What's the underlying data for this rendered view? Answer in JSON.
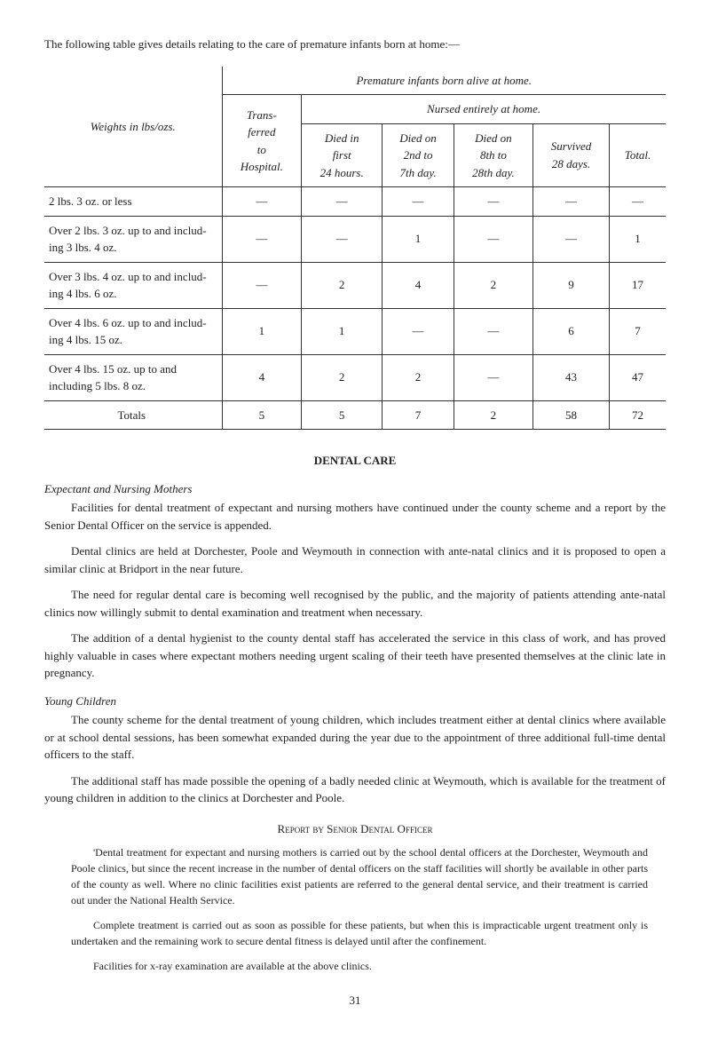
{
  "intro_text": "The following table gives details relating to the care of premature infants born at home:—",
  "table": {
    "col1_header": "Weights in lbs/ozs.",
    "spanning_header": "Premature infants born alive at home.",
    "trans_header": "Trans-\nferred\nto\nHospital.",
    "nursed_header": "Nursed entirely at home.",
    "sub_headers": {
      "died_first": "Died in\nfirst\n24 hours.",
      "died_2nd": "Died on\n2nd to\n7th day.",
      "died_8th": "Died on\n8th to\n28th day.",
      "survived": "Survived\n28 days.",
      "total": "Total."
    },
    "rows": [
      {
        "label": "2 lbs. 3 oz. or less",
        "cells": [
          "—",
          "—",
          "—",
          "—",
          "—",
          "—"
        ]
      },
      {
        "label": "Over 2 lbs. 3 oz. up to and includ-\ning 3 lbs. 4 oz.",
        "cells": [
          "—",
          "—",
          "1",
          "—",
          "—",
          "1"
        ]
      },
      {
        "label": "Over 3 lbs. 4 oz. up to and includ-\ning 4 lbs. 6 oz.",
        "cells": [
          "—",
          "2",
          "4",
          "2",
          "9",
          "17"
        ]
      },
      {
        "label": "Over 4 lbs. 6 oz. up to and includ-\ning 4 lbs. 15 oz.",
        "cells": [
          "1",
          "1",
          "—",
          "—",
          "6",
          "7"
        ]
      },
      {
        "label": "Over 4 lbs. 15 oz. up to and\nincluding 5 lbs. 8 oz.",
        "cells": [
          "4",
          "2",
          "2",
          "—",
          "43",
          "47"
        ]
      },
      {
        "label": "Totals",
        "cells": [
          "5",
          "5",
          "7",
          "2",
          "58",
          "72"
        ]
      }
    ]
  },
  "dental_care_heading": "DENTAL CARE",
  "expectant_heading": "Expectant and Nursing Mothers",
  "para1": "Facilities for dental treatment of expectant and nursing mothers have continued under the county scheme and a report by the Senior Dental Officer on the service is appended.",
  "para2": "Dental clinics are held at Dorchester, Poole and Weymouth in connection with ante-natal clinics and it is proposed to open a similar clinic at Bridport in the near future.",
  "para3": "The need for regular dental care is becoming well recognised by the public, and the majority of patients attending ante-natal clinics now willingly submit to dental examination and treatment when necessary.",
  "para4": "The addition of a dental hygienist to the county dental staff has accelerated the service in this class of work, and has proved highly valuable in cases where expectant mothers needing urgent scaling of their teeth have presented themselves at the clinic late in pregnancy.",
  "young_heading": "Young Children",
  "para5": "The county scheme for the dental treatment of young children, which includes treatment either at dental clinics where available or at school dental sessions, has been somewhat expanded during the year due to the appointment of three additional full-time dental officers to the staff.",
  "para6": "The additional staff has made possible the opening of a badly needed clinic at Weymouth, which is available for the treatment of young children in addition to the clinics at Dorchester and Poole.",
  "report_heading": "Report by Senior Dental Officer",
  "quote1": "'Dental treatment for expectant and nursing mothers is carried out by the school dental officers at the Dorchester, Weymouth and Poole clinics, but since the recent increase in the number of dental officers on the staff facilities will shortly be available in other parts of the county as well. Where no clinic facilities exist patients are referred to the general dental service, and their treatment is carried out under the National Health Service.",
  "quote2": "Complete treatment is carried out as soon as possible for these patients, but when this is impracticable urgent treatment only is undertaken and the remaining work to secure dental fitness is delayed until after the confinement.",
  "quote3": "Facilities for x-ray examination are available at the above clinics.",
  "page_number": "31"
}
